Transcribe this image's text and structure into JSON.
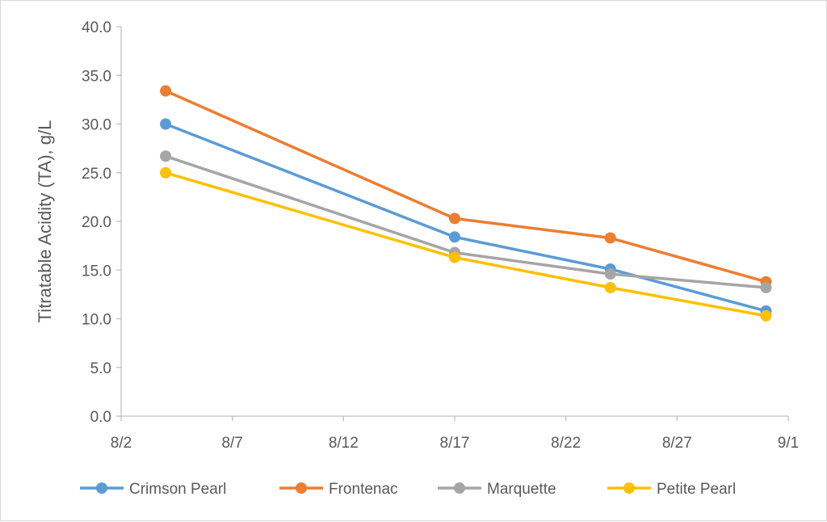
{
  "chart_data": {
    "type": "line",
    "title": "",
    "xlabel": "",
    "ylabel": "Titratable Acidity (TA), g/L",
    "x_axis": {
      "type": "date",
      "min": "2024-08-02",
      "max": "2024-09-01",
      "tick_labels": [
        "8/2",
        "8/7",
        "8/12",
        "8/17",
        "8/22",
        "8/27",
        "9/1"
      ]
    },
    "ylim": [
      0,
      40
    ],
    "y_ticks": [
      "0.0",
      "5.0",
      "10.0",
      "15.0",
      "20.0",
      "25.0",
      "30.0",
      "35.0",
      "40.0"
    ],
    "grid": false,
    "legend_position": "bottom",
    "x": [
      "2024-08-04",
      "2024-08-17",
      "2024-08-24",
      "2024-08-31"
    ],
    "series": [
      {
        "name": "Crimson Pearl",
        "color": "#5B9BD5",
        "values": [
          30.0,
          18.4,
          15.1,
          10.8
        ]
      },
      {
        "name": "Frontenac",
        "color": "#ED7D31",
        "values": [
          33.4,
          20.3,
          18.3,
          13.8
        ]
      },
      {
        "name": "Marquette",
        "color": "#A5A5A5",
        "values": [
          26.7,
          16.8,
          14.6,
          13.2
        ]
      },
      {
        "name": "Petite Pearl",
        "color": "#FFC000",
        "values": [
          25.0,
          16.3,
          13.2,
          10.3
        ]
      }
    ]
  }
}
